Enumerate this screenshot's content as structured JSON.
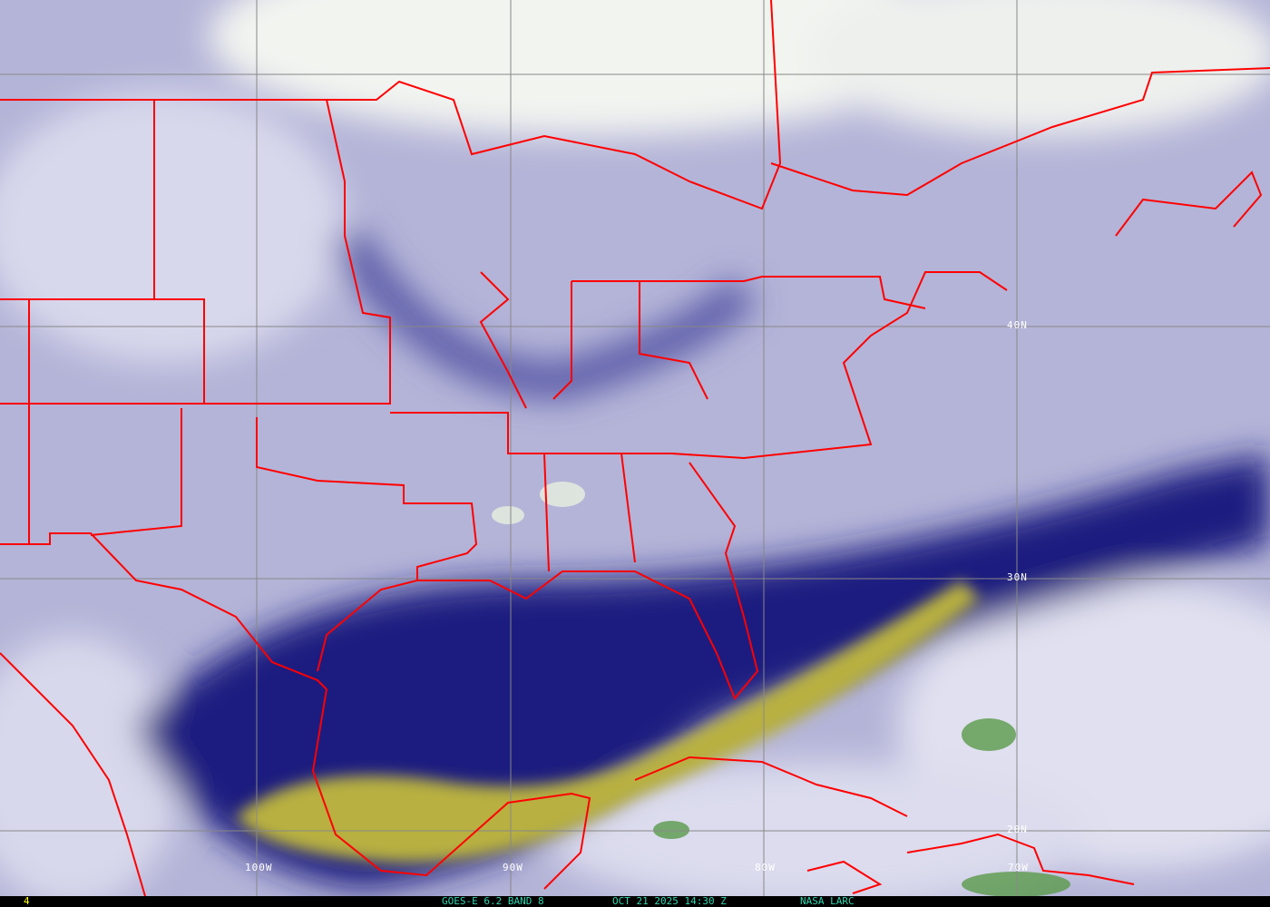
{
  "image": {
    "product": "GOES-E 6.2 BAND 8",
    "datetime": "OCT 21 2025 14:30 Z",
    "source": "NASA LARC",
    "frame": "4"
  },
  "grid": {
    "lon_labels": [
      "100W",
      "90W",
      "80W",
      "70W"
    ],
    "lat_labels": [
      "40N",
      "30N",
      "20N"
    ]
  },
  "colors": {
    "background": "#b9b9dc",
    "moist": "#e8e8f2",
    "dry": "#1a1a78",
    "very_dry": "#c8c040",
    "cloud": "#5a9a4a",
    "borders": "#ff0000",
    "grid": "#888888",
    "status_text": "#2fd6b0",
    "frame_text": "#ffff00"
  }
}
